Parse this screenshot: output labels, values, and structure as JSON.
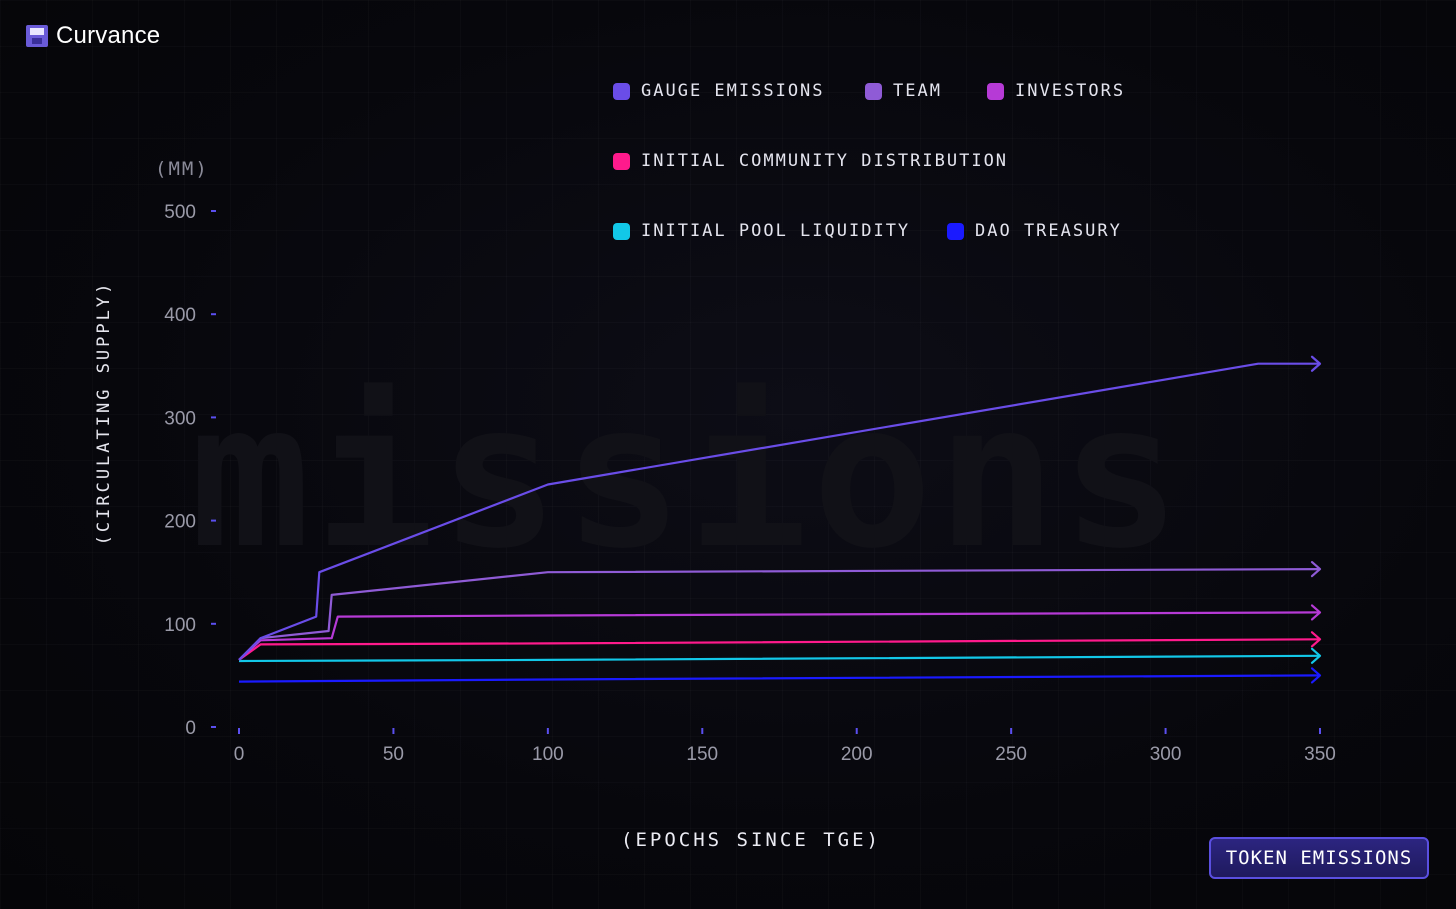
{
  "brand": {
    "name": "Curvance"
  },
  "badge": {
    "label": "TOKEN EMISSIONS"
  },
  "colors": {
    "gauge_emissions": "#6a4de8",
    "team": "#8f5bd6",
    "investors": "#b63ad6",
    "initial_community_distribution": "#ff1a8c",
    "initial_pool_liquidity": "#12c8e8",
    "dao_treasury": "#1a1aff",
    "axis_tick": "#5b4ff0",
    "tick_label": "#9a9aa8"
  },
  "chart_data": {
    "type": "line",
    "title": "",
    "xlabel": "(EPOCHS SINCE TGE)",
    "ylabel": "(CIRCULATING SUPPLY)",
    "y_unit": "(MM)",
    "xlim": [
      0,
      350
    ],
    "ylim": [
      0,
      500
    ],
    "x_ticks": [
      0,
      50,
      100,
      150,
      200,
      250,
      300,
      350
    ],
    "y_ticks": [
      0,
      100,
      200,
      300,
      400,
      500
    ],
    "grid": false,
    "legend_position": "top",
    "series": [
      {
        "name": "GAUGE EMISSIONS",
        "color": "#6a4de8",
        "points": [
          [
            0,
            65
          ],
          [
            7,
            86
          ],
          [
            25,
            107
          ],
          [
            26,
            150
          ],
          [
            100,
            235
          ],
          [
            330,
            352
          ],
          [
            350,
            352
          ]
        ]
      },
      {
        "name": "TEAM",
        "color": "#8f5bd6",
        "points": [
          [
            0,
            65
          ],
          [
            7,
            86
          ],
          [
            29,
            93
          ],
          [
            30,
            128
          ],
          [
            100,
            150
          ],
          [
            350,
            153
          ]
        ]
      },
      {
        "name": "INVESTORS",
        "color": "#b63ad6",
        "points": [
          [
            0,
            65
          ],
          [
            7,
            84
          ],
          [
            30,
            86
          ],
          [
            32,
            107
          ],
          [
            100,
            108
          ],
          [
            350,
            111
          ]
        ]
      },
      {
        "name": "INITIAL COMMUNITY DISTRIBUTION",
        "color": "#ff1a8c",
        "points": [
          [
            0,
            65
          ],
          [
            7,
            80
          ],
          [
            100,
            81
          ],
          [
            350,
            85
          ]
        ]
      },
      {
        "name": "INITIAL POOL LIQUIDITY",
        "color": "#12c8e8",
        "points": [
          [
            0,
            64
          ],
          [
            100,
            65
          ],
          [
            350,
            69
          ]
        ]
      },
      {
        "name": "DAO TREASURY",
        "color": "#1a1aff",
        "points": [
          [
            0,
            44
          ],
          [
            100,
            46
          ],
          [
            350,
            50
          ]
        ]
      }
    ]
  }
}
